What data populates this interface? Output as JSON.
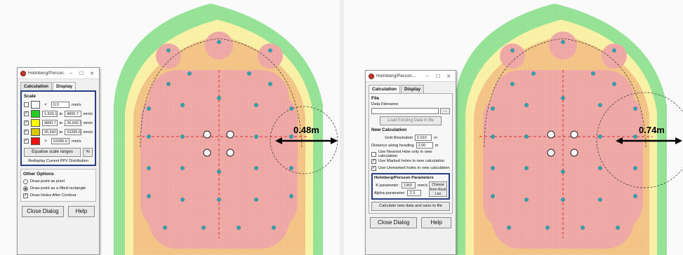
{
  "left_panel": {
    "dialog": {
      "title": "Holmberg/Person...",
      "window_buttons": {
        "minimize": "–",
        "maximize": "☐",
        "close": "✕"
      },
      "tabs": [
        "Calculation",
        "Display"
      ],
      "active_tab": "Display",
      "scale": {
        "label": "Scale",
        "rows": [
          {
            "checked": false,
            "color": "#ffffff",
            "op": "<",
            "from": "0.0",
            "to": "",
            "unit": "mm/s"
          },
          {
            "checked": true,
            "color": "#22cc22",
            "op": "",
            "from": "1,600.10",
            "to": "9800.7",
            "unit": "mm/s"
          },
          {
            "checked": true,
            "color": "#ffff00",
            "op": "",
            "from": "9800.7",
            "to": "26,642.92",
            "unit": "mm/s"
          },
          {
            "checked": true,
            "color": "#d8c800",
            "op": "",
            "from": "26,642.92",
            "to": "53285.6",
            "unit": "mm/s"
          },
          {
            "checked": true,
            "color": "#ee1111",
            "op": ">",
            "from": "53285.6",
            "to": "",
            "unit": "mm/s"
          }
        ],
        "to_word": "to",
        "equalise_label": "Equalise scale ranges",
        "percent_label": "%",
        "redisplay_text": "Redisplay Current PPV Distribution"
      },
      "other_options": {
        "label": "Other Options",
        "options": [
          {
            "type": "radio",
            "selected": false,
            "label": "Draw point as pixel"
          },
          {
            "type": "radio",
            "selected": true,
            "label": "Draw point as a filled rectangle"
          },
          {
            "type": "checkbox",
            "selected": true,
            "label": "Draw Holes After Contour"
          }
        ]
      },
      "close_label": "Close Dialog",
      "help_label": "Help"
    },
    "measurement": "0.48m"
  },
  "right_panel": {
    "dialog": {
      "title": "Holmberg/Person...",
      "window_buttons": {
        "minimize": "–",
        "maximize": "☐",
        "close": "✕"
      },
      "tabs": [
        "Calculation",
        "Display"
      ],
      "active_tab": "Calculation",
      "file": {
        "label": "File",
        "data_filename_label": "Data Filename:",
        "browse_label": "...",
        "load_label": "Load Existing Data in file"
      },
      "new_calc": {
        "label": "New Calculation",
        "grid_resolution_label": "Grid Resolution",
        "grid_resolution_value": "0.010",
        "grid_resolution_unit": "m",
        "distance_label": "Distance along heading",
        "distance_value": "2.00",
        "distance_unit": "m",
        "options": [
          {
            "checked": false,
            "label": "Use Nearest Hole only in new calculation"
          },
          {
            "checked": true,
            "label": "Use Marked holes in new calculation"
          },
          {
            "checked": true,
            "label": "Use Unmarked holes in new calculation"
          }
        ]
      },
      "params": {
        "label": "Holmberg/Persson Parameters",
        "k_label": "K parameter:",
        "k_value": "1360",
        "k_unit": "mm/s",
        "alpha_label": "Alpha parameter:",
        "alpha_value": "2.3",
        "choose_label": "Choose from Rock List"
      },
      "calc_label": "Calculate new data and save to file",
      "close_label": "Close Dialog",
      "help_label": "Help"
    },
    "measurement": "0.74m"
  },
  "colors": {
    "green_zone": "#8fe08f",
    "yellow_zone": "#f8f0a0",
    "orange_zone": "#f2c07f",
    "red_zone": "#eda3a0",
    "hole_fill": "#2aa6b4",
    "accent_border": "#2a3d80"
  }
}
